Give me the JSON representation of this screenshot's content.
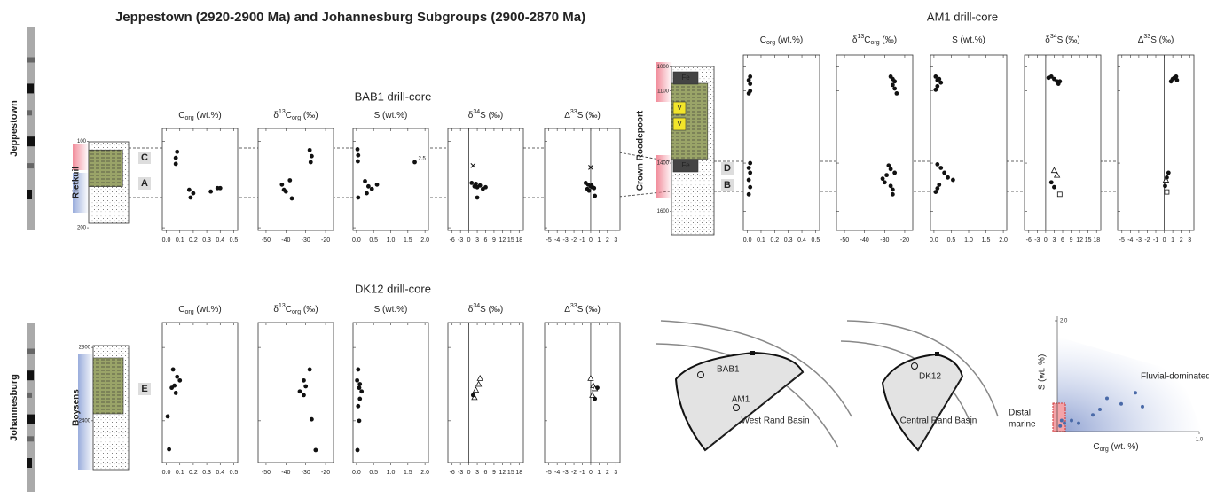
{
  "title": "Jeppestown (2920-2900 Ma) and Johannesburg Subgroups (2900-2870 Ma)",
  "subgroups": [
    "Jeppestown",
    "Johannesburg"
  ],
  "axes": [
    {
      "label": [
        {
          "text": "C"
        },
        {
          "sub": "org"
        },
        {
          "text": " (wt.%)"
        }
      ],
      "xlim": [
        -0.03,
        0.53
      ],
      "xticks": [
        {
          "value": 0,
          "label": "0.0"
        },
        0.1,
        0.2,
        0.3,
        0.4,
        0.5
      ]
    },
    {
      "label": [
        {
          "text": "δ"
        },
        {
          "sup": "13"
        },
        {
          "text": "C"
        },
        {
          "sub": "org"
        },
        {
          "text": " (‰)"
        }
      ],
      "xlim": [
        -54,
        -16
      ],
      "xticks": [
        -50,
        -40,
        -30,
        -20
      ]
    },
    {
      "label": [
        {
          "text": "S (wt.%)"
        }
      ],
      "xlim": [
        -0.1,
        2.1
      ],
      "xticks": [
        {
          "value": 0,
          "label": "0.0"
        },
        0.5,
        {
          "value": 1,
          "label": "1.0"
        },
        1.5,
        {
          "value": 2,
          "label": "2.0"
        }
      ]
    },
    {
      "label": [
        {
          "text": "δ"
        },
        {
          "sup": "34"
        },
        {
          "text": "S (‰)"
        }
      ],
      "xlim": [
        -7.5,
        19.5
      ],
      "xticks": [
        -6,
        -3,
        0,
        3,
        6,
        9,
        12,
        15,
        18
      ],
      "ref_line": 0
    },
    {
      "label": [
        {
          "text": "Δ"
        },
        {
          "sup": "33"
        },
        {
          "text": "S (‰)"
        }
      ],
      "xlim": [
        -5.5,
        3.5
      ],
      "xticks": [
        -5,
        -4,
        -3,
        -2,
        -1,
        0,
        1,
        2,
        3
      ],
      "ref_line": 0
    }
  ],
  "cores": [
    {
      "name": "BAB1 drill-core",
      "formation": "Rietkuil",
      "ylim": [
        85,
        203
      ],
      "yticks": [
        100,
        200
      ],
      "units": [
        "C",
        "A"
      ],
      "lithology": [],
      "panels": [
        {
          "series": [
            {
              "marker": "dot",
              "x": [
                0.08,
                0.07,
                0.07,
                0.17,
                0.2,
                0.18,
                0.33,
                0.38,
                0.4
              ],
              "depth": [
                112,
                119,
                126,
                156,
                160,
                165,
                158,
                154,
                154
              ]
            }
          ]
        },
        {
          "series": [
            {
              "marker": "dot",
              "x": [
                -28,
                -27,
                -27.5,
                -42,
                -41,
                -40,
                -38,
                -37
              ],
              "depth": [
                110,
                117,
                124,
                150,
                156,
                158,
                145,
                166
              ]
            }
          ]
        },
        {
          "series": [
            {
              "marker": "dot",
              "x": [
                0.03,
                0.05,
                0.04,
                0.25,
                0.35,
                0.45,
                0.6,
                0.3,
                0.05,
                1.7
              ],
              "depth": [
                109,
                116,
                123,
                146,
                152,
                155,
                150,
                160,
                165,
                124
              ]
            }
          ],
          "note": "2.5"
        },
        {
          "series": [
            {
              "marker": "dot",
              "x": [
                1,
                2,
                3,
                4,
                5,
                6,
                2.5,
                3
              ],
              "depth": [
                148,
                152,
                153,
                151,
                155,
                153,
                149,
                165
              ]
            },
            {
              "marker": "cross",
              "x": [
                1.5
              ],
              "depth": [
                128
              ]
            }
          ]
        },
        {
          "series": [
            {
              "marker": "dot",
              "x": [
                -0.6,
                -0.3,
                0,
                0.2,
                -0.4,
                0.4,
                0.1,
                0.5,
                -0.2
              ],
              "depth": [
                148,
                150,
                152,
                153,
                155,
                154,
                151,
                163,
                157
              ]
            },
            {
              "marker": "cross",
              "x": [
                0
              ],
              "depth": [
                130
              ]
            }
          ]
        }
      ]
    },
    {
      "name": "AM1 drill-core",
      "formation": "Crown Roodepoort",
      "ylim": [
        950,
        1680
      ],
      "yticks": [
        1000,
        1100,
        1400,
        1600
      ],
      "units": [
        "D",
        "B"
      ],
      "lithology": [
        "Fe",
        "V",
        "V",
        "Fe"
      ],
      "panels": [
        {
          "series": [
            {
              "marker": "dot",
              "x": [
                0.02,
                0.01,
                0.02,
                0.02,
                0.01,
                0.02,
                0.01,
                0.02,
                0.01,
                0.02,
                0.01
              ],
              "depth": [
                1040,
                1055,
                1070,
                1100,
                1110,
                1400,
                1420,
                1440,
                1470,
                1500,
                1530
              ]
            }
          ]
        },
        {
          "series": [
            {
              "marker": "dot",
              "x": [
                -27,
                -26,
                -25,
                -26,
                -25,
                -24,
                -28,
                -27,
                -29,
                -31,
                -30,
                -27,
                -26,
                -26,
                -25
              ],
              "depth": [
                1040,
                1050,
                1060,
                1075,
                1090,
                1110,
                1410,
                1425,
                1450,
                1465,
                1480,
                1495,
                1510,
                1530,
                1440
              ]
            }
          ]
        },
        {
          "series": [
            {
              "marker": "dot",
              "x": [
                0.05,
                0.1,
                0.15,
                0.2,
                0.1,
                0.05,
                0.1,
                0.2,
                0.3,
                0.4,
                0.55,
                0.15,
                0.1,
                0.05
              ],
              "depth": [
                1040,
                1055,
                1050,
                1065,
                1080,
                1095,
                1405,
                1420,
                1440,
                1460,
                1470,
                1490,
                1505,
                1520
              ]
            }
          ]
        },
        {
          "series": [
            {
              "marker": "dot",
              "x": [
                1,
                2,
                3,
                4,
                4.5,
                5,
                2,
                3
              ],
              "depth": [
                1045,
                1040,
                1050,
                1060,
                1070,
                1060,
                1480,
                1500
              ]
            },
            {
              "marker": "triangle",
              "x": [
                3,
                4
              ],
              "depth": [
                1430,
                1450
              ]
            },
            {
              "marker": "square",
              "x": [
                5
              ],
              "depth": [
                1530
              ]
            }
          ]
        },
        {
          "series": [
            {
              "marker": "dot",
              "x": [
                0.8,
                1,
                1.2,
                1.4,
                1.5,
                0.5,
                0.3,
                0.2,
                0.1
              ],
              "depth": [
                1060,
                1050,
                1045,
                1040,
                1055,
                1440,
                1460,
                1475,
                1495
              ]
            },
            {
              "marker": "triangle",
              "x": [
                0.2
              ],
              "depth": [
                1470
              ]
            },
            {
              "marker": "square",
              "x": [
                0.3
              ],
              "depth": [
                1520
              ]
            }
          ]
        }
      ]
    },
    {
      "name": "DK12 drill-core",
      "formation": "Boysens",
      "ylim": [
        2266,
        2457
      ],
      "yticks": [
        2300,
        2400
      ],
      "units": [
        "E"
      ],
      "lithology": [],
      "panels": [
        {
          "series": [
            {
              "marker": "dot",
              "x": [
                0.05,
                0.08,
                0.06,
                0.1,
                0.07,
                0.04,
                0.01,
                0.02
              ],
              "depth": [
                2330,
                2340,
                2352,
                2345,
                2362,
                2355,
                2394,
                2439
              ]
            }
          ]
        },
        {
          "series": [
            {
              "marker": "dot",
              "x": [
                -28,
                -31,
                -30,
                -33,
                -31,
                -27,
                -25
              ],
              "depth": [
                2330,
                2345,
                2353,
                2360,
                2365,
                2398,
                2440
              ]
            }
          ]
        },
        {
          "series": [
            {
              "marker": "dot",
              "x": [
                0.05,
                0.02,
                0.1,
                0.08,
                0.15,
                0.1,
                0.05,
                0.08,
                0.03
              ],
              "depth": [
                2330,
                2345,
                2350,
                2355,
                2360,
                2370,
                2380,
                2400,
                2440
              ]
            }
          ]
        },
        {
          "series": [
            {
              "marker": "triangle",
              "x": [
                4,
                3.5,
                2.5,
                2
              ],
              "depth": [
                2342,
                2350,
                2358,
                2368
              ]
            },
            {
              "marker": "dot",
              "x": [
                1.5
              ],
              "depth": [
                2365
              ]
            }
          ]
        },
        {
          "series": [
            {
              "marker": "triangle",
              "x": [
                0,
                0.3,
                0.5,
                0.2
              ],
              "depth": [
                2342,
                2352,
                2356,
                2365
              ]
            },
            {
              "marker": "dot",
              "x": [
                0.8,
                0.5
              ],
              "depth": [
                2355,
                2370
              ]
            }
          ]
        }
      ]
    }
  ],
  "maps": [
    {
      "basin": "West Rand Basin",
      "sites": [
        "BAB1",
        "AM1"
      ]
    },
    {
      "basin": "Central Rand Basin",
      "sites": [
        "DK12"
      ]
    }
  ],
  "inset": {
    "type": "scatter",
    "x": [
      0.02,
      0.03,
      0.05,
      0.1,
      0.3,
      0.35,
      0.45,
      0.55,
      0.6,
      0.15,
      0.25
    ],
    "y": [
      0.1,
      0.2,
      0.15,
      0.2,
      0.4,
      0.6,
      0.5,
      0.7,
      0.45,
      0.15,
      0.3
    ],
    "color": "#4a6aa8",
    "xlim": [
      0,
      1
    ],
    "ylim": [
      0,
      2
    ],
    "xticks": [
      {
        "value": 1,
        "label": "1.0"
      }
    ],
    "yticks": [
      {
        "value": 2,
        "label": "2.0"
      }
    ],
    "xlabel": [
      {
        "text": "C"
      },
      {
        "sub": "org"
      },
      {
        "text": " (wt. %)"
      }
    ],
    "ylabel": "S (wt. %)",
    "regions": [
      "Fluvial-dominated",
      "Distal",
      "marine"
    ]
  }
}
